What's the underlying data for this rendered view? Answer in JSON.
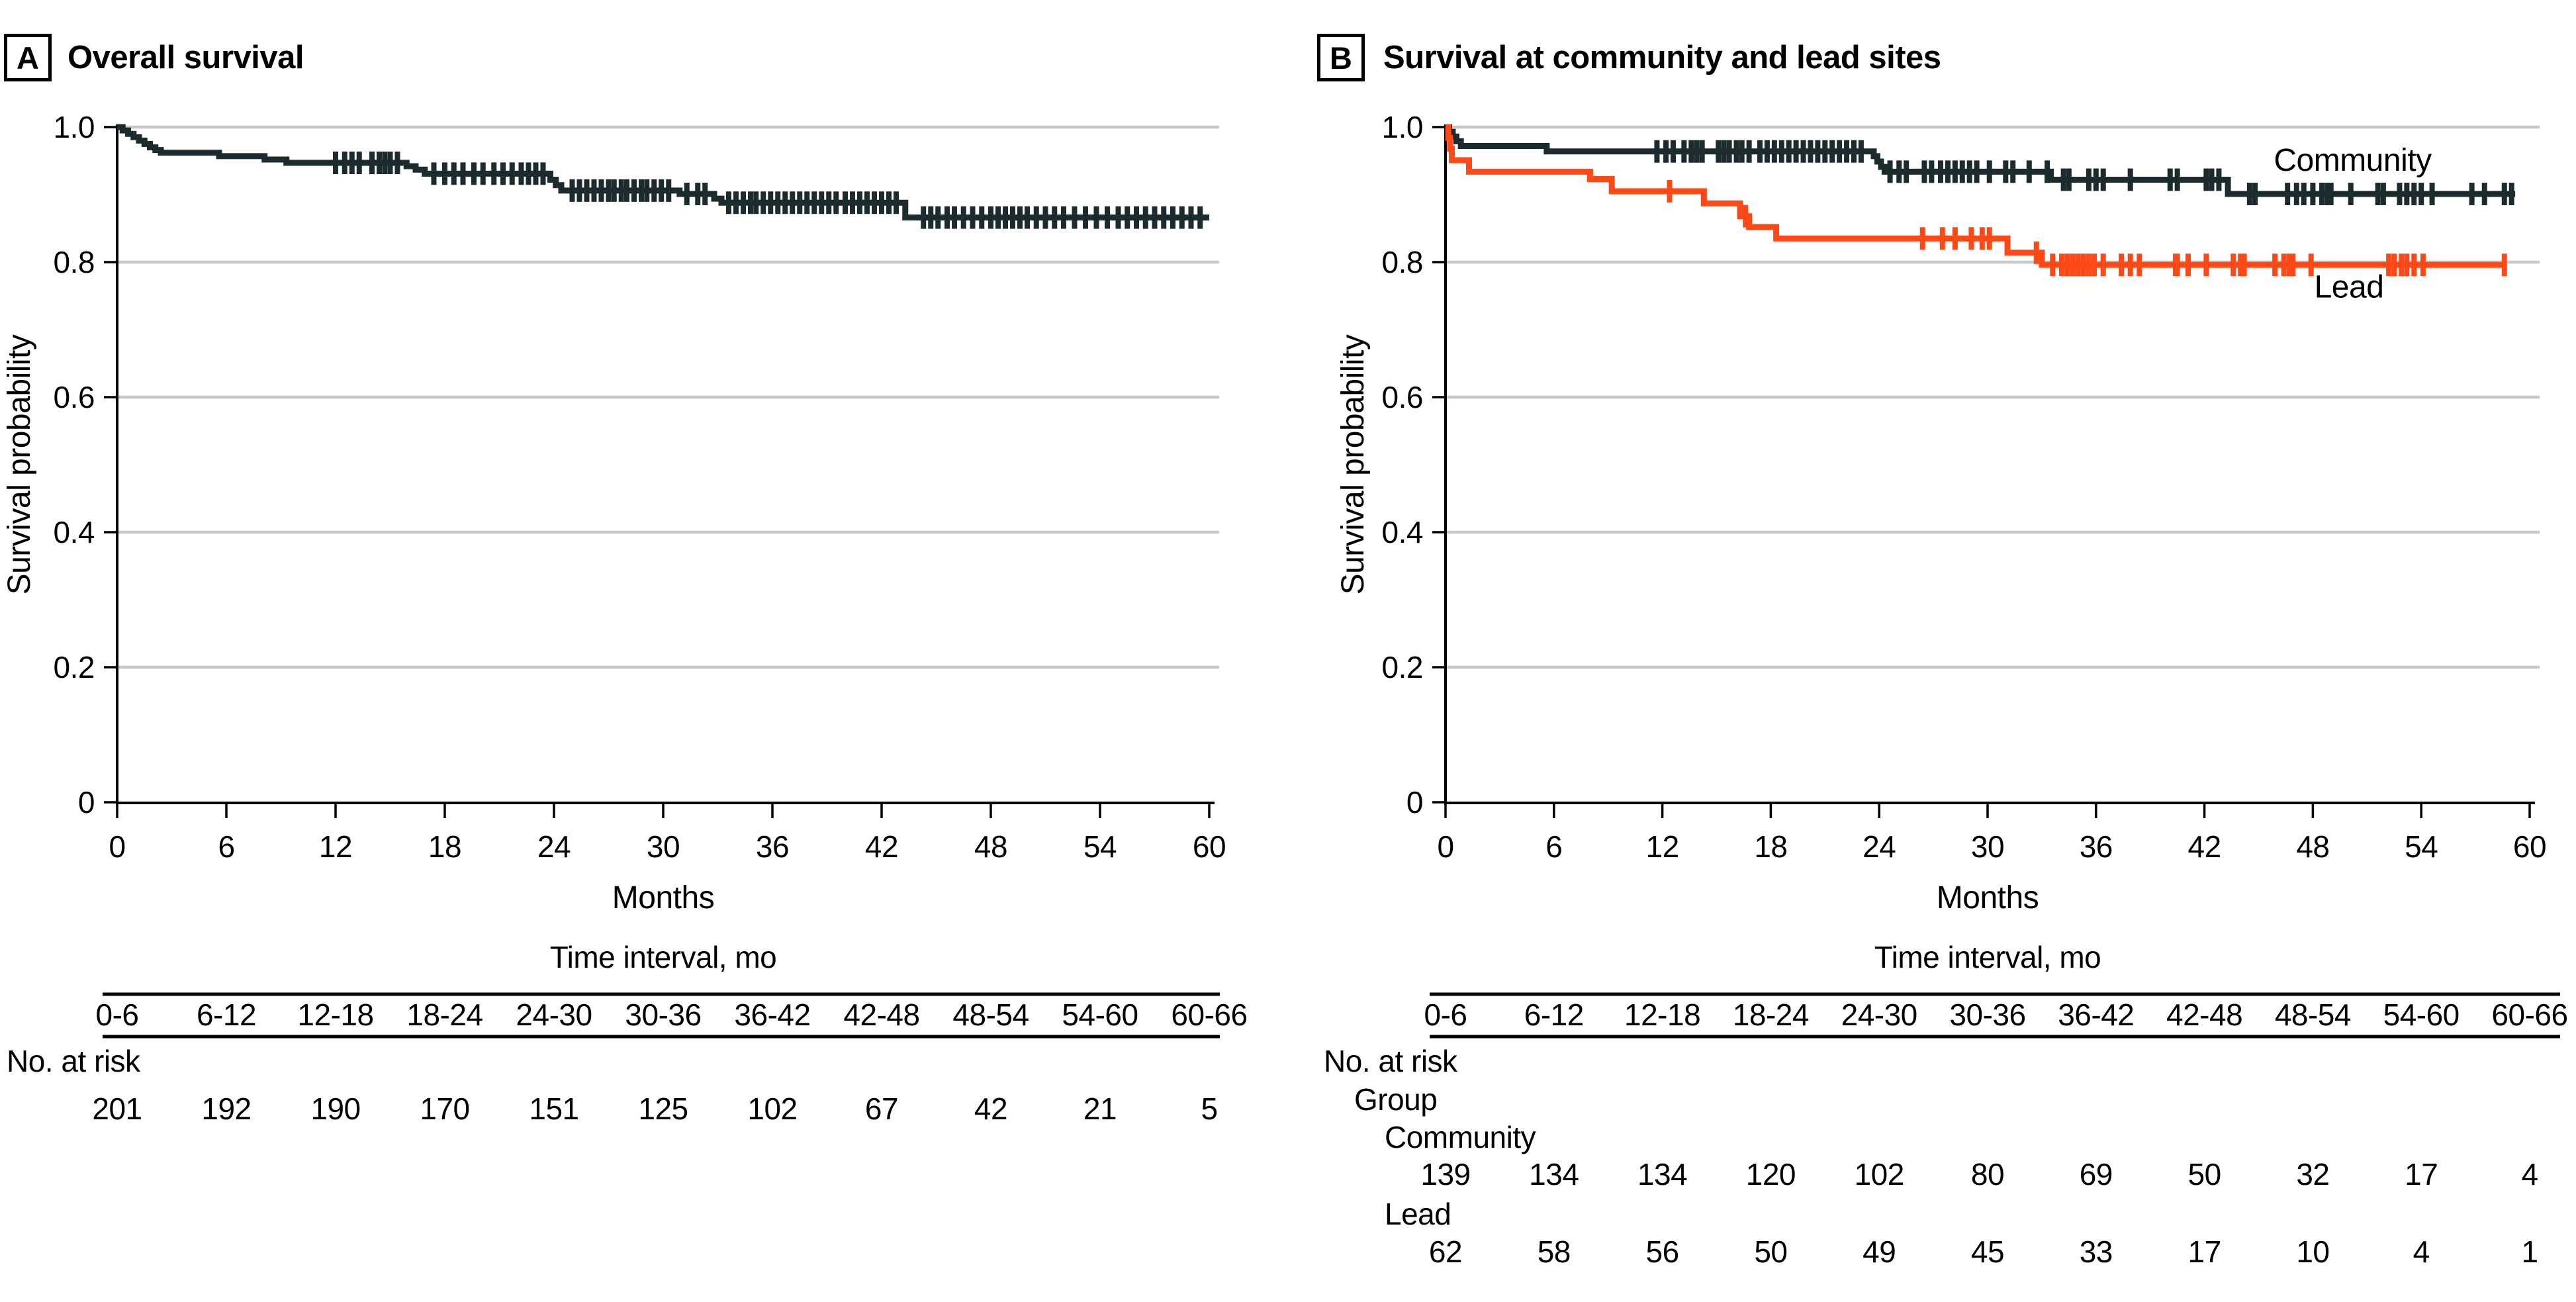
{
  "figure": {
    "panels": [
      {
        "letter": "A",
        "title": "Overall survival"
      },
      {
        "letter": "B",
        "title": "Survival at community and lead sites"
      }
    ]
  },
  "colors": {
    "axis": "#000000",
    "grid": "#c8c8c8",
    "community_dark": "#1c2b2d",
    "lead_orange": "#fb4a17"
  },
  "chart_data": [
    {
      "type": "line",
      "subtype": "kaplan-meier-step",
      "title": "Overall survival",
      "xlabel": "Months",
      "ylabel": "Survival probability",
      "xticks": [
        0,
        6,
        12,
        18,
        24,
        30,
        36,
        42,
        48,
        54,
        60
      ],
      "yticks": [
        0,
        0.2,
        0.4,
        0.6,
        0.8,
        1.0
      ],
      "xlim": [
        0,
        60
      ],
      "ylim": [
        0,
        1.0
      ],
      "grid": "horizontal",
      "legend_position": "none",
      "series": [
        {
          "name": "Overall",
          "color": "#1c2b2d",
          "end_month": 60,
          "steps": [
            [
              0,
              1.0
            ],
            [
              0.3,
              0.995
            ],
            [
              0.6,
              0.99
            ],
            [
              0.9,
              0.985
            ],
            [
              1.2,
              0.98
            ],
            [
              1.5,
              0.975
            ],
            [
              1.8,
              0.97
            ],
            [
              2.1,
              0.966
            ],
            [
              2.4,
              0.962
            ],
            [
              5.6,
              0.957
            ],
            [
              8.1,
              0.952
            ],
            [
              9.3,
              0.947
            ],
            [
              15.9,
              0.942
            ],
            [
              16.4,
              0.937
            ],
            [
              16.9,
              0.931
            ],
            [
              23.8,
              0.922
            ],
            [
              24.1,
              0.914
            ],
            [
              24.4,
              0.906
            ],
            [
              30.9,
              0.901
            ],
            [
              32.8,
              0.894
            ],
            [
              33.2,
              0.888
            ],
            [
              43.3,
              0.866
            ]
          ],
          "censors": [
            {
              "v": 0.947,
              "months": [
                12.0,
                12.5,
                12.9,
                13.3,
                14.0,
                14.4,
                14.7,
                15.0,
                15.4
              ]
            },
            {
              "v": 0.931,
              "months": [
                17.4,
                18.0,
                18.5,
                19.0,
                19.6,
                20.1,
                20.7,
                21.2,
                21.7,
                22.2,
                22.6,
                23.0,
                23.4
              ]
            },
            {
              "v": 0.906,
              "months": [
                25.0,
                25.4,
                25.8,
                26.2,
                26.6,
                27.0,
                27.3,
                27.7,
                28.0,
                28.4,
                28.8,
                29.1,
                29.5,
                29.9,
                30.3
              ]
            },
            {
              "v": 0.901,
              "months": [
                31.3,
                31.9,
                32.3
              ]
            },
            {
              "v": 0.888,
              "months": [
                33.6,
                34.0,
                34.4,
                34.8,
                35.1,
                35.5,
                35.9,
                36.3,
                36.7,
                37.1,
                37.5,
                37.9,
                38.3,
                38.7,
                39.1,
                39.5,
                40.0,
                40.4,
                40.8,
                41.2,
                41.6,
                42.0,
                42.4,
                42.8
              ]
            },
            {
              "v": 0.866,
              "months": [
                44.3,
                44.7,
                45.1,
                45.6,
                46.0,
                46.5,
                47.0,
                47.5,
                48.0,
                48.4,
                48.8,
                49.2,
                49.6,
                50.0,
                50.5,
                51.0,
                51.5,
                52.0,
                52.6,
                53.2,
                53.8,
                54.4,
                55.0,
                55.5,
                56.0,
                56.5,
                57.0,
                57.5,
                58.0,
                58.5,
                59.0,
                59.5
              ]
            }
          ]
        }
      ],
      "risk_table": {
        "title": "Time interval, mo",
        "row_label": "No. at risk",
        "intervals": [
          "0-6",
          "6-12",
          "12-18",
          "18-24",
          "24-30",
          "30-36",
          "36-42",
          "42-48",
          "48-54",
          "54-60",
          "60-66"
        ],
        "rows": [
          {
            "name": null,
            "values": [
              201,
              192,
              190,
              170,
              151,
              125,
              102,
              67,
              42,
              21,
              5
            ]
          }
        ]
      }
    },
    {
      "type": "line",
      "subtype": "kaplan-meier-step",
      "title": "Survival at community and lead sites",
      "xlabel": "Months",
      "ylabel": "Survival probability",
      "xticks": [
        0,
        6,
        12,
        18,
        24,
        30,
        36,
        42,
        48,
        54,
        60
      ],
      "yticks": [
        0,
        0.2,
        0.4,
        0.6,
        0.8,
        1.0
      ],
      "xlim": [
        0,
        60
      ],
      "ylim": [
        0,
        1.0
      ],
      "grid": "horizontal",
      "legend_position": "inline-labels",
      "series": [
        {
          "name": "Community",
          "color": "#1c2b2d",
          "end_month": 59.2,
          "annotation": {
            "text": "Community",
            "x_month": 50.2,
            "y_value": 0.952
          },
          "steps": [
            [
              0,
              1.0
            ],
            [
              0.2,
              0.993
            ],
            [
              0.4,
              0.986
            ],
            [
              0.6,
              0.979
            ],
            [
              0.85,
              0.972
            ],
            [
              5.6,
              0.964
            ],
            [
              23.7,
              0.957
            ],
            [
              23.9,
              0.949
            ],
            [
              24.1,
              0.941
            ],
            [
              24.3,
              0.934
            ],
            [
              33.5,
              0.922
            ],
            [
              43.3,
              0.901
            ]
          ],
          "censors": [
            {
              "v": 0.964,
              "months": [
                11.7,
                12.2,
                12.6,
                13.2,
                13.6,
                13.9,
                14.2,
                15.1,
                15.4,
                15.7,
                16.1,
                16.4,
                16.8,
                17.4,
                17.8,
                18.2,
                18.6,
                19.0,
                19.4,
                19.8,
                20.2,
                20.6,
                21.0,
                21.4,
                21.8,
                22.2,
                22.6,
                23.0
              ]
            },
            {
              "v": 0.934,
              "months": [
                24.6,
                25.1,
                25.5,
                26.5,
                26.9,
                27.4,
                27.8,
                28.2,
                28.6,
                29.0,
                29.4,
                30.1,
                31.0,
                31.4,
                32.3,
                33.3
              ]
            },
            {
              "v": 0.922,
              "months": [
                34.2,
                34.5,
                35.6,
                36.0,
                36.4,
                37.9,
                40.1,
                40.5,
                42.1,
                42.4,
                42.8
              ]
            },
            {
              "v": 0.901,
              "months": [
                44.5,
                44.8,
                46.6,
                47.1,
                47.5,
                48.0,
                48.5,
                48.8,
                49.0,
                50.1,
                51.6,
                51.9,
                52.8,
                53.2,
                53.6,
                54.0,
                54.6,
                56.8,
                57.5,
                58.6,
                59.0
              ]
            }
          ]
        },
        {
          "name": "Lead",
          "color": "#fb4a17",
          "end_month": 58.6,
          "annotation": {
            "text": "Lead",
            "x_month": 50.0,
            "y_value": 0.764
          },
          "steps": [
            [
              0,
              1.0
            ],
            [
              0.15,
              0.984
            ],
            [
              0.25,
              0.968
            ],
            [
              0.35,
              0.951
            ],
            [
              1.3,
              0.934
            ],
            [
              8.0,
              0.923
            ],
            [
              9.2,
              0.905
            ],
            [
              14.3,
              0.887
            ],
            [
              16.3,
              0.868
            ],
            [
              16.8,
              0.852
            ],
            [
              18.3,
              0.835
            ],
            [
              31.1,
              0.814
            ],
            [
              33.0,
              0.796
            ]
          ],
          "censors": [
            {
              "v": 0.905,
              "months": [
                12.4
              ]
            },
            {
              "v": 0.868,
              "months": [
                16.6
              ]
            },
            {
              "v": 0.835,
              "months": [
                26.4,
                27.5,
                28.2,
                29.1,
                29.7,
                30.1
              ]
            },
            {
              "v": 0.814,
              "months": [
                32.7
              ]
            },
            {
              "v": 0.796,
              "months": [
                33.6,
                34.1,
                34.4,
                34.7,
                35.0,
                35.3,
                35.6,
                35.9,
                36.4,
                37.4,
                37.9,
                38.4,
                40.4,
                40.5,
                41.1,
                42.1,
                43.6,
                44.0,
                44.2,
                45.9,
                46.4,
                46.7,
                46.9,
                47.9,
                52.2,
                52.5,
                52.9,
                53.2,
                53.6,
                54.1,
                58.6
              ]
            }
          ]
        }
      ],
      "risk_table": {
        "title": "Time interval, mo",
        "row_label": "No. at risk",
        "group_label": "Group",
        "intervals": [
          "0-6",
          "6-12",
          "12-18",
          "18-24",
          "24-30",
          "30-36",
          "36-42",
          "42-48",
          "48-54",
          "54-60",
          "60-66"
        ],
        "rows": [
          {
            "name": "Community",
            "values": [
              139,
              134,
              134,
              120,
              102,
              80,
              69,
              50,
              32,
              17,
              4
            ]
          },
          {
            "name": "Lead",
            "values": [
              62,
              58,
              56,
              50,
              49,
              45,
              33,
              17,
              10,
              4,
              1
            ]
          }
        ]
      }
    }
  ]
}
